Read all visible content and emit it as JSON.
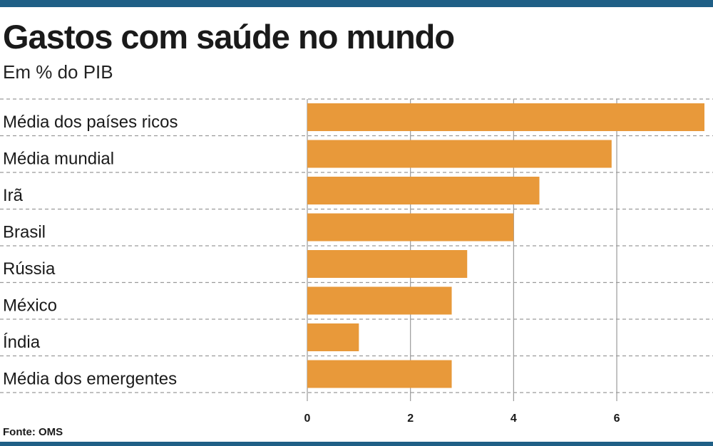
{
  "header": {
    "title": "Gastos com saúde no mundo",
    "subtitle": "Em % do PIB"
  },
  "footer": {
    "source": "Fonte: OMS"
  },
  "colors": {
    "bar": "#e8993a",
    "accent_rule": "#1f5f86",
    "grid": "#9a9a9a"
  },
  "chart_data": {
    "type": "bar",
    "orientation": "horizontal",
    "title": "Gastos com saúde no mundo",
    "subtitle": "Em % do PIB",
    "categories": [
      "Média dos países ricos",
      "Média mundial",
      "Irã",
      "Brasil",
      "Rússia",
      "México",
      "Índia",
      "Média dos emergentes"
    ],
    "values": [
      7.7,
      5.9,
      4.5,
      4.0,
      3.1,
      2.8,
      1.0,
      2.8
    ],
    "xlim": [
      0,
      7.7
    ],
    "xticks": [
      0,
      2,
      4,
      6
    ],
    "xtick_labels": [
      "0",
      "2",
      "4",
      "6"
    ],
    "grid": true
  }
}
